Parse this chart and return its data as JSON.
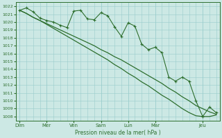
{
  "background_color": "#cce8e4",
  "grid_color": "#99cccc",
  "line_color": "#2d6e2d",
  "title": "Pression niveau de la mer( hPa )",
  "ylim": [
    1007.5,
    1022.5
  ],
  "yticks": [
    1008,
    1009,
    1010,
    1011,
    1012,
    1013,
    1014,
    1015,
    1016,
    1017,
    1018,
    1019,
    1020,
    1021,
    1022
  ],
  "xtick_labels": [
    "Dim",
    "Mer",
    "Ven",
    "Sam",
    "Lun",
    "Mar",
    "Jeu"
  ],
  "xtick_positions": [
    0,
    4,
    8,
    12,
    16,
    20,
    27
  ],
  "n_points": 30,
  "series1": [
    1021.5,
    1021.8,
    1021.3,
    1020.5,
    1020.2,
    1020.0,
    1019.6,
    1019.3,
    1021.4,
    1021.5,
    1020.4,
    1020.3,
    1021.2,
    1020.8,
    1019.4,
    1018.2,
    1019.9,
    1019.5,
    1017.2,
    1016.5,
    1016.8,
    1016.1,
    1013.0,
    1012.5,
    1013.0,
    1012.5,
    1010.0,
    1008.0,
    1009.2,
    1008.5
  ],
  "series2": [
    1021.5,
    1021.1,
    1020.6,
    1020.2,
    1019.8,
    1019.4,
    1019.0,
    1018.6,
    1018.2,
    1017.8,
    1017.4,
    1017.0,
    1016.5,
    1016.1,
    1015.6,
    1015.2,
    1014.7,
    1014.2,
    1013.7,
    1013.2,
    1012.7,
    1012.2,
    1011.6,
    1011.1,
    1010.5,
    1010.0,
    1009.4,
    1009.0,
    1008.6,
    1008.3
  ],
  "series3": [
    1021.5,
    1021.1,
    1020.6,
    1020.2,
    1019.7,
    1019.2,
    1018.7,
    1018.2,
    1017.7,
    1017.2,
    1016.7,
    1016.2,
    1015.7,
    1015.2,
    1014.6,
    1014.1,
    1013.5,
    1013.0,
    1012.4,
    1011.9,
    1011.3,
    1010.7,
    1010.2,
    1009.6,
    1009.0,
    1008.5,
    1008.1,
    1008.0,
    1008.0,
    1008.2
  ]
}
